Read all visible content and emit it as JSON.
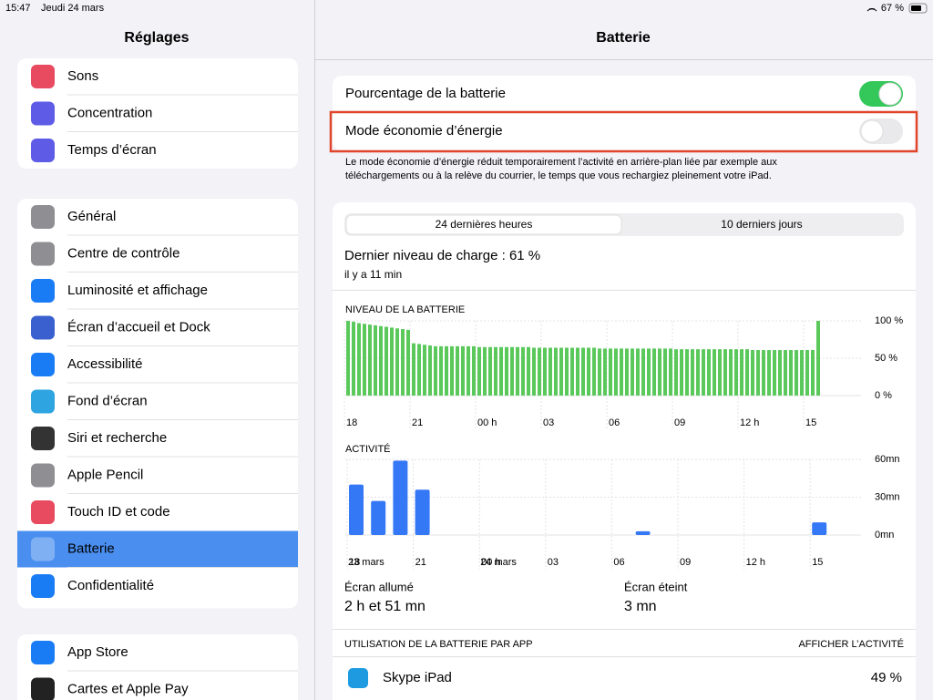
{
  "status_bar": {
    "time": "15:47",
    "date": "Jeudi 24 mars",
    "battery": "67 %"
  },
  "sidebar": {
    "title": "Réglages",
    "groups": [
      [
        "Sons",
        "Concentration",
        "Temps d’écran"
      ],
      [
        "Général",
        "Centre de contrôle",
        "Luminosité et affichage",
        "Écran d’accueil et Dock",
        "Accessibilité",
        "Fond d’écran",
        "Siri et recherche",
        "Apple Pencil",
        "Touch ID et code",
        "Batterie",
        "Confidentialité"
      ],
      [
        "App Store",
        "Cartes et Apple Pay"
      ]
    ],
    "selected": "Batterie"
  },
  "detail": {
    "title": "Batterie",
    "toggles": [
      {
        "label": "Pourcentage de la batterie",
        "on": true
      },
      {
        "label": "Mode économie d’énergie",
        "on": false
      }
    ],
    "note": [
      "Le mode économie d’énergie réduit temporairement l’activité en arrière-plan liée par exemple aux",
      "téléchargements ou à la relève du courrier, le temps que vous rechargiez pleinement votre iPad."
    ],
    "segments": [
      "24 dernières heures",
      "10 derniers jours"
    ],
    "selected_segment": 0,
    "last_charge": "Dernier niveau de charge : 61 %",
    "last_charge_time": "il y a 11 min",
    "level_chart": {
      "type": "bar",
      "title": "NIVEAU DE LA BATTERIE",
      "color": "#5ac85a",
      "ylim": [
        0,
        100
      ],
      "yticks": [
        {
          "value": 100,
          "label": "100 %"
        },
        {
          "value": 50,
          "label": "50 %"
        },
        {
          "value": 0,
          "label": "0 %"
        }
      ],
      "categories": [
        "18",
        null,
        null,
        null,
        null,
        null,
        null,
        null,
        null,
        null,
        null,
        null,
        "21",
        null,
        null,
        null,
        null,
        null,
        null,
        null,
        null,
        null,
        null,
        null,
        "00 h",
        null,
        null,
        null,
        null,
        null,
        null,
        null,
        null,
        null,
        null,
        null,
        "03",
        null,
        null,
        null,
        null,
        null,
        null,
        null,
        null,
        null,
        null,
        null,
        "06",
        null,
        null,
        null,
        null,
        null,
        null,
        null,
        null,
        null,
        null,
        null,
        "09",
        null,
        null,
        null,
        null,
        null,
        null,
        null,
        null,
        null,
        null,
        null,
        "12 h",
        null,
        null,
        null,
        null,
        null,
        null,
        null,
        null,
        null,
        null,
        null,
        "15",
        null,
        null
      ],
      "values": [
        100,
        99,
        97,
        96,
        95,
        94,
        93,
        92,
        91,
        90,
        89,
        88,
        70,
        69,
        68,
        67,
        66,
        66,
        66,
        66,
        66,
        66,
        66,
        66,
        65,
        65,
        65,
        65,
        65,
        65,
        65,
        65,
        65,
        65,
        64,
        64,
        64,
        64,
        64,
        64,
        64,
        64,
        64,
        64,
        64,
        64,
        63,
        63,
        63,
        63,
        63,
        63,
        63,
        63,
        63,
        63,
        63,
        63,
        63,
        63,
        62,
        62,
        62,
        62,
        62,
        62,
        62,
        62,
        62,
        62,
        62,
        62,
        62,
        62,
        61,
        61,
        61,
        61,
        61,
        61,
        61,
        61,
        61,
        61,
        61,
        61,
        100
      ]
    },
    "activity_chart": {
      "type": "bar",
      "title": "ACTIVITÉ",
      "color": "#3478f6",
      "ylim": [
        0,
        60
      ],
      "yticks": [
        {
          "value": 60,
          "label": "60mn"
        },
        {
          "value": 30,
          "label": "30mn"
        },
        {
          "value": 0,
          "label": "0mn"
        }
      ],
      "categories": [
        "18",
        null,
        null,
        "21",
        null,
        null,
        "00 h",
        null,
        null,
        "03",
        null,
        null,
        "06",
        null,
        null,
        "09",
        null,
        null,
        "12 h",
        null,
        null,
        "15"
      ],
      "values": [
        40,
        27,
        59,
        36,
        0,
        0,
        0,
        0,
        0,
        0,
        0,
        0,
        0,
        3,
        0,
        0,
        0,
        0,
        0,
        0,
        0,
        10
      ],
      "date_labels": [
        "23 mars",
        "24 mars"
      ]
    },
    "screen_on": {
      "label": "Écran allumé",
      "value": "2 h et 51 mn"
    },
    "screen_off": {
      "label": "Écran éteint",
      "value": "3 mn"
    },
    "usage_title": "UTILISATION DE LA BATTERIE PAR APP",
    "usage_link": "AFFICHER L’ACTIVITÉ",
    "apps": [
      {
        "name": "Skype iPad",
        "value": "49 %"
      }
    ]
  }
}
